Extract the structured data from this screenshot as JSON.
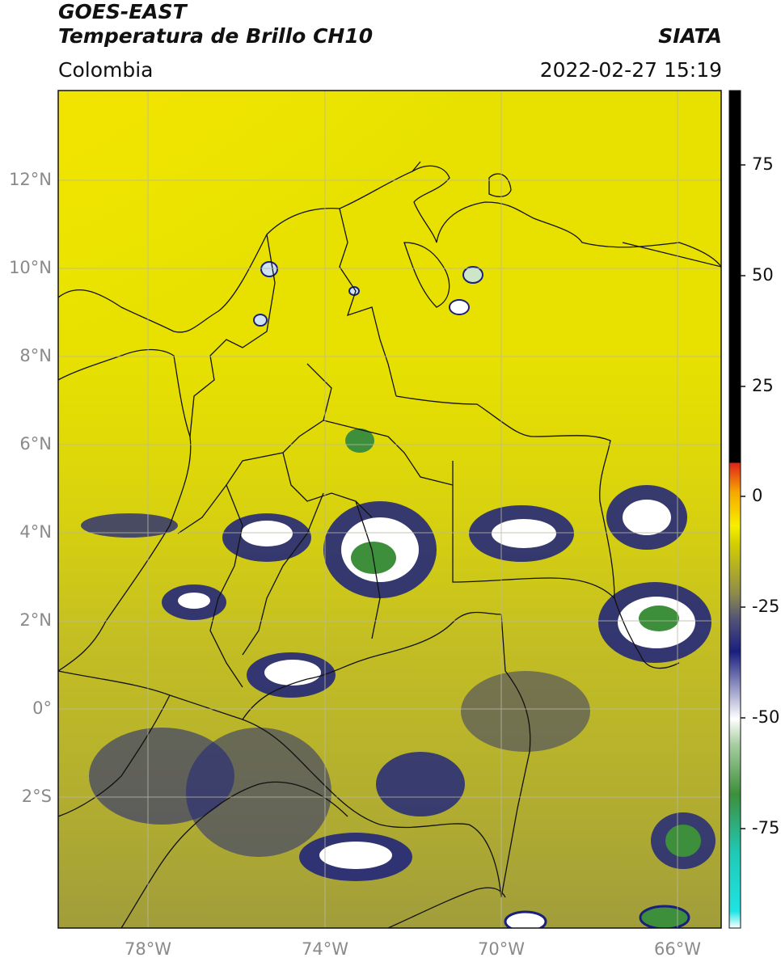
{
  "header": {
    "satellite": "GOES-EAST",
    "product": "Temperatura de Brillo CH10",
    "region": "Colombia",
    "brand": "SIATA",
    "datetime": "2022-02-27 15:19"
  },
  "axes": {
    "lat_labels": [
      "12°N",
      "10°N",
      "8°N",
      "6°N",
      "4°N",
      "2°N",
      "0°",
      "2°S"
    ],
    "lat_values": [
      12,
      10,
      8,
      6,
      4,
      2,
      0,
      -2
    ],
    "lon_labels": [
      "78°W",
      "74°W",
      "70°W",
      "66°W"
    ],
    "lon_values": [
      -78,
      -74,
      -70,
      -66
    ],
    "lon_range": [
      -80,
      -65
    ],
    "lat_range": [
      -4.3,
      14
    ],
    "grid": true
  },
  "colorbar": {
    "ticks": [
      "75",
      "50",
      "25",
      "0",
      "-25",
      "-50",
      "-75"
    ],
    "tick_values": [
      75,
      50,
      25,
      0,
      -25,
      -50,
      -75
    ],
    "range": [
      -100,
      90
    ]
  },
  "colors": {
    "warm_orange": "#f26a00",
    "yellow": "#f6ef00",
    "olive": "#a9a63a",
    "navy": "#1a1f7e",
    "white": "#ffffff",
    "green": "#3d8f3b",
    "cyan": "#1fe3e3",
    "black": "#000000",
    "red": "#e0241a"
  }
}
